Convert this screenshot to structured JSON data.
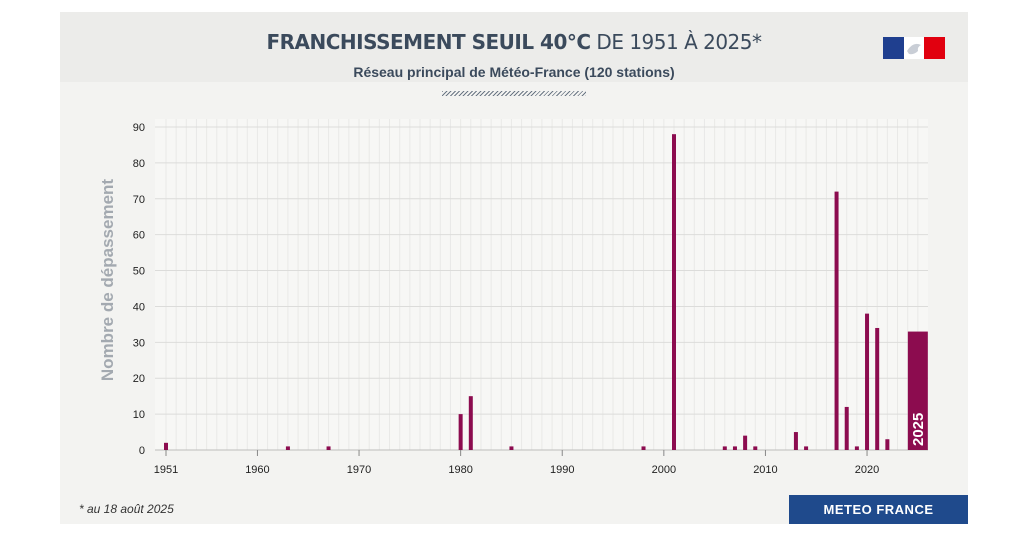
{
  "header": {
    "title_bold": "FRANCHISSEMENT SEUIL 40°C",
    "title_light": "DE 1951 À 2025*",
    "subtitle": "Réseau principal de Météo-France (120 stations)"
  },
  "footer": {
    "footnote": "* au 18 août 2025",
    "brand": "METEO FRANCE"
  },
  "icons": {
    "flag": "republique-francaise-logo-icon"
  },
  "colors": {
    "bar": "#8c0c4f",
    "brand_bg": "#1f4a8c",
    "title": "#3b4a5c"
  },
  "chart_data": {
    "type": "bar",
    "ylabel": "Nombre de dépassement",
    "xlabel": "",
    "ylim": [
      0,
      90
    ],
    "yticks": [
      0,
      10,
      20,
      30,
      40,
      50,
      60,
      70,
      80,
      90
    ],
    "xticks": [
      1951,
      1960,
      1970,
      1980,
      1990,
      2000,
      2010,
      2020
    ],
    "grid": true,
    "highlight": {
      "year": 2025,
      "label": "2025"
    },
    "data": [
      {
        "x": 1951,
        "y": 2
      },
      {
        "x": 1963,
        "y": 1
      },
      {
        "x": 1967,
        "y": 1
      },
      {
        "x": 1980,
        "y": 10
      },
      {
        "x": 1981,
        "y": 15
      },
      {
        "x": 1985,
        "y": 1
      },
      {
        "x": 1998,
        "y": 1
      },
      {
        "x": 2001,
        "y": 88
      },
      {
        "x": 2006,
        "y": 1
      },
      {
        "x": 2007,
        "y": 1
      },
      {
        "x": 2008,
        "y": 4
      },
      {
        "x": 2009,
        "y": 1
      },
      {
        "x": 2013,
        "y": 5
      },
      {
        "x": 2014,
        "y": 1
      },
      {
        "x": 2017,
        "y": 72
      },
      {
        "x": 2018,
        "y": 12
      },
      {
        "x": 2019,
        "y": 1
      },
      {
        "x": 2020,
        "y": 38
      },
      {
        "x": 2021,
        "y": 34
      },
      {
        "x": 2022,
        "y": 3
      },
      {
        "x": 2025,
        "y": 33
      }
    ]
  }
}
